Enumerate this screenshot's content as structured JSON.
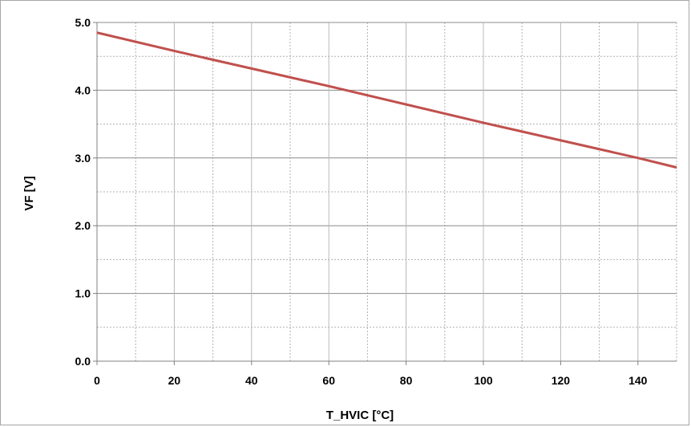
{
  "chart_data": {
    "type": "line",
    "title": "",
    "xlabel": "T_HVIC [°C]",
    "ylabel": "VF [V]",
    "xlim": [
      0,
      150
    ],
    "ylim": [
      0.0,
      5.0
    ],
    "x_major_ticks": [
      0,
      20,
      40,
      60,
      80,
      100,
      120,
      140
    ],
    "x_tick_labels": [
      "0",
      "20",
      "40",
      "60",
      "80",
      "100",
      "120",
      "140"
    ],
    "x_minor_grid": [
      10,
      30,
      50,
      70,
      90,
      110,
      130,
      150
    ],
    "y_major_ticks": [
      0.0,
      1.0,
      2.0,
      3.0,
      4.0,
      5.0
    ],
    "y_tick_labels": [
      "0.0",
      "1.0",
      "2.0",
      "3.0",
      "4.0",
      "5.0"
    ],
    "y_minor_grid": [
      0.5,
      1.5,
      2.5,
      3.5,
      4.5
    ],
    "grid": true,
    "legend": "none",
    "series": [
      {
        "color": "#c0504d",
        "x": [
          0,
          20,
          40,
          60,
          80,
          100,
          120,
          140,
          150
        ],
        "y": [
          4.85,
          4.58,
          4.32,
          4.06,
          3.79,
          3.52,
          3.26,
          3.0,
          2.86
        ]
      }
    ]
  }
}
